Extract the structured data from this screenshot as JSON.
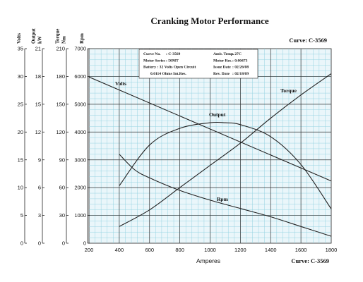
{
  "chart_data": {
    "type": "line",
    "title": "Cranking Motor Performance",
    "curve_id": "Curve: C-3569",
    "xlabel": "Amperes",
    "xlim": [
      200,
      1800
    ],
    "x_ticks": [
      "200",
      "400",
      "600",
      "800",
      "1000",
      "1200",
      "1400",
      "1600",
      "1800"
    ],
    "grid": true,
    "axes": [
      {
        "key": "volts",
        "label": "Volts",
        "range": [
          0,
          35
        ],
        "ticks": [
          "35",
          "30",
          "25",
          "20",
          "15",
          "10",
          "5",
          "0"
        ]
      },
      {
        "key": "output",
        "label": "Output kW",
        "range": [
          0,
          21
        ],
        "ticks": [
          "21",
          "18",
          "15",
          "12",
          "9",
          "6",
          "3",
          "0"
        ]
      },
      {
        "key": "torque",
        "label": "Torque Nm",
        "range": [
          0,
          210
        ],
        "ticks": [
          "210",
          "180",
          "150",
          "120",
          "90",
          "60",
          "30",
          "0"
        ]
      },
      {
        "key": "rpm",
        "label": "Rpm",
        "range": [
          0,
          7000
        ],
        "ticks": [
          "7000",
          "6000",
          "5000",
          "4000",
          "3000",
          "2000",
          "1000",
          "0"
        ]
      }
    ],
    "series": [
      {
        "name": "Volts",
        "axis": "volts",
        "x": [
          200,
          1800
        ],
        "values": [
          29.9,
          11.2
        ]
      },
      {
        "name": "Torque",
        "axis": "torque",
        "x": [
          400,
          600,
          800,
          1000,
          1200,
          1400,
          1600,
          1800
        ],
        "values": [
          18,
          36,
          60,
          84,
          108,
          135,
          160,
          183
        ]
      },
      {
        "name": "Output",
        "axis": "output",
        "x": [
          400,
          600,
          800,
          1000,
          1100,
          1200,
          1400,
          1600,
          1800
        ],
        "values": [
          6.2,
          10.6,
          12.4,
          13.0,
          13.0,
          12.8,
          11.5,
          8.5,
          3.7
        ]
      },
      {
        "name": "Rpm",
        "axis": "rpm",
        "x": [
          400,
          500,
          600,
          800,
          1000,
          1200,
          1400,
          1600,
          1800
        ],
        "values": [
          3200,
          2650,
          2350,
          1900,
          1550,
          1250,
          950,
          600,
          250
        ]
      }
    ],
    "info_box": [
      [
        "Curve No.",
        ": C-3569",
        "Amb. Temp.",
        ": 27C"
      ],
      [
        "Motor Series",
        ": 50MT",
        "Motor Res.",
        ": 0.00473"
      ],
      [
        "Battery : 32 Volts Open Circuit",
        "",
        "Issue Date",
        ": 02/26/08"
      ],
      [
        "0.0114 Ohms Int.Res.",
        "",
        "Rev. Date",
        ": 02/18/09"
      ]
    ],
    "colors": {
      "grid_minor": "#8fd0e0",
      "grid_major": "#333333",
      "plot_bg": "#eaf6fa",
      "line": "#222222"
    }
  }
}
